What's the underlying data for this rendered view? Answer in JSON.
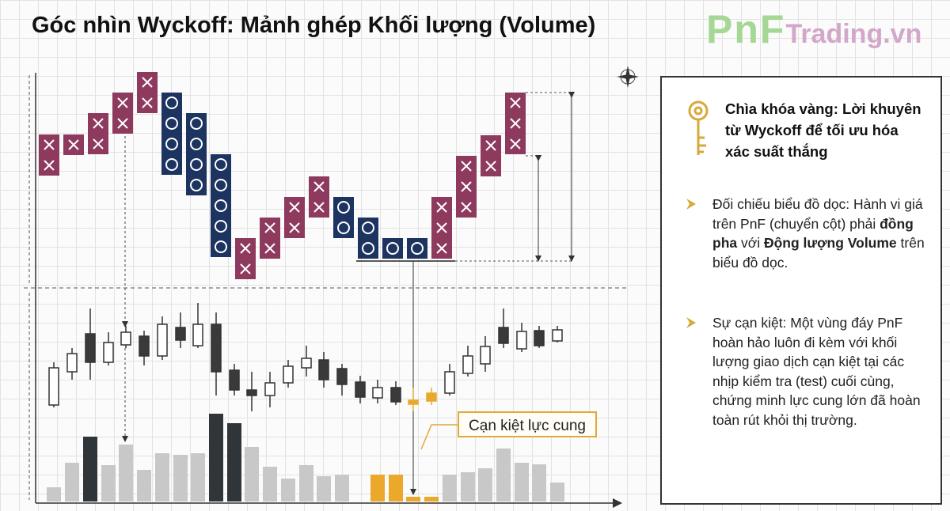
{
  "header": {
    "title": "Góc nhìn Wyckoff: Mảnh ghép Khối lượng (Volume)",
    "logo": {
      "brand": "PnF",
      "site": "Trading.vn"
    }
  },
  "chart": {
    "annotation": "Cạn kiệt lực cung"
  },
  "panel": {
    "heading": "Chìa khóa vàng: Lời khuyên từ Wyckoff để tối ưu hóa xác suất thắng",
    "bullets": [
      {
        "parts": [
          {
            "text": "Đối chiếu biểu đồ dọc: Hành vi giá trên PnF (chuyển cột) phải ",
            "bold": false
          },
          {
            "text": "đồng pha",
            "bold": true
          },
          {
            "text": " với ",
            "bold": false
          },
          {
            "text": "Động lượng Volume",
            "bold": true
          },
          {
            "text": " trên biểu đồ dọc.",
            "bold": false
          }
        ]
      },
      {
        "parts": [
          {
            "text": "Sự cạn kiệt: Một vùng đáy PnF hoàn hảo luôn đi kèm với khối lượng giao dịch cạn kiệt tại các nhịp kiểm tra (test) cuối cùng, chứng minh lực cung lớn đã hoàn toàn rút khỏi thị trường.",
            "bold": false
          }
        ]
      }
    ]
  }
}
